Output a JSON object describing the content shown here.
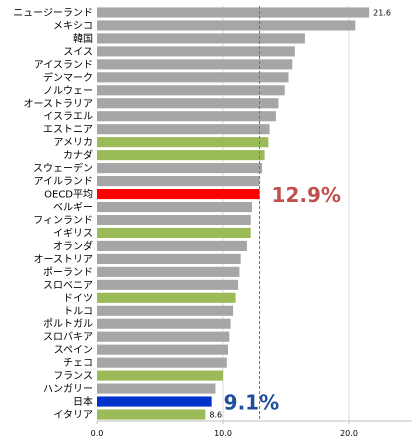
{
  "chart_data": {
    "type": "bar",
    "orientation": "horizontal",
    "title": "",
    "xlabel": "",
    "ylabel": "",
    "xlim": [
      0,
      25
    ],
    "xticks": [
      0,
      10,
      20
    ],
    "xtick_labels": [
      "0.0",
      "10.0",
      "20.0"
    ],
    "grid": "vertical",
    "categories": [
      "ニュージーランド",
      "メキシコ",
      "韓国",
      "スイス",
      "アイスランド",
      "デンマーク",
      "ノルウェー",
      "オーストラリア",
      "イスラエル",
      "エストニア",
      "アメリカ",
      "カナダ",
      "スウェーデン",
      "アイルランド",
      "OECD平均",
      "ベルギー",
      "フィンランド",
      "イギリス",
      "オランダ",
      "オーストリア",
      "ポーランド",
      "スロベニア",
      "ドイツ",
      "トルコ",
      "ポルトガル",
      "スロバキア",
      "スペイン",
      "チェコ",
      "フランス",
      "ハンガリー",
      "日本",
      "イタリア"
    ],
    "values": [
      21.6,
      20.5,
      16.5,
      15.7,
      15.5,
      15.2,
      14.9,
      14.4,
      14.2,
      13.7,
      13.6,
      13.3,
      13.1,
      12.9,
      12.9,
      12.3,
      12.2,
      12.2,
      11.9,
      11.4,
      11.3,
      11.2,
      11.0,
      10.8,
      10.6,
      10.5,
      10.4,
      10.3,
      10.0,
      9.4,
      9.1,
      8.6
    ],
    "bar_colors": [
      "#a6a6a6",
      "#a6a6a6",
      "#a6a6a6",
      "#a6a6a6",
      "#a6a6a6",
      "#a6a6a6",
      "#a6a6a6",
      "#a6a6a6",
      "#a6a6a6",
      "#a6a6a6",
      "#9bbb59",
      "#9bbb59",
      "#a6a6a6",
      "#a6a6a6",
      "#ff0000",
      "#a6a6a6",
      "#a6a6a6",
      "#9bbb59",
      "#a6a6a6",
      "#a6a6a6",
      "#a6a6a6",
      "#a6a6a6",
      "#9bbb59",
      "#a6a6a6",
      "#a6a6a6",
      "#a6a6a6",
      "#a6a6a6",
      "#a6a6a6",
      "#9bbb59",
      "#a6a6a6",
      "#0033cc",
      "#9bbb59"
    ],
    "data_labels": [
      {
        "index": 0,
        "text": "21.6"
      },
      {
        "index": 31,
        "text": "8.6"
      }
    ],
    "reference_line": {
      "value": 12.9,
      "style": "dashed",
      "color": "#c0504d"
    },
    "annotations": [
      {
        "text": "12.9%",
        "target_index": 14,
        "color": "#c0504d"
      },
      {
        "text": "9.1%",
        "target_index": 30,
        "color": "#1f4e9c"
      }
    ]
  }
}
